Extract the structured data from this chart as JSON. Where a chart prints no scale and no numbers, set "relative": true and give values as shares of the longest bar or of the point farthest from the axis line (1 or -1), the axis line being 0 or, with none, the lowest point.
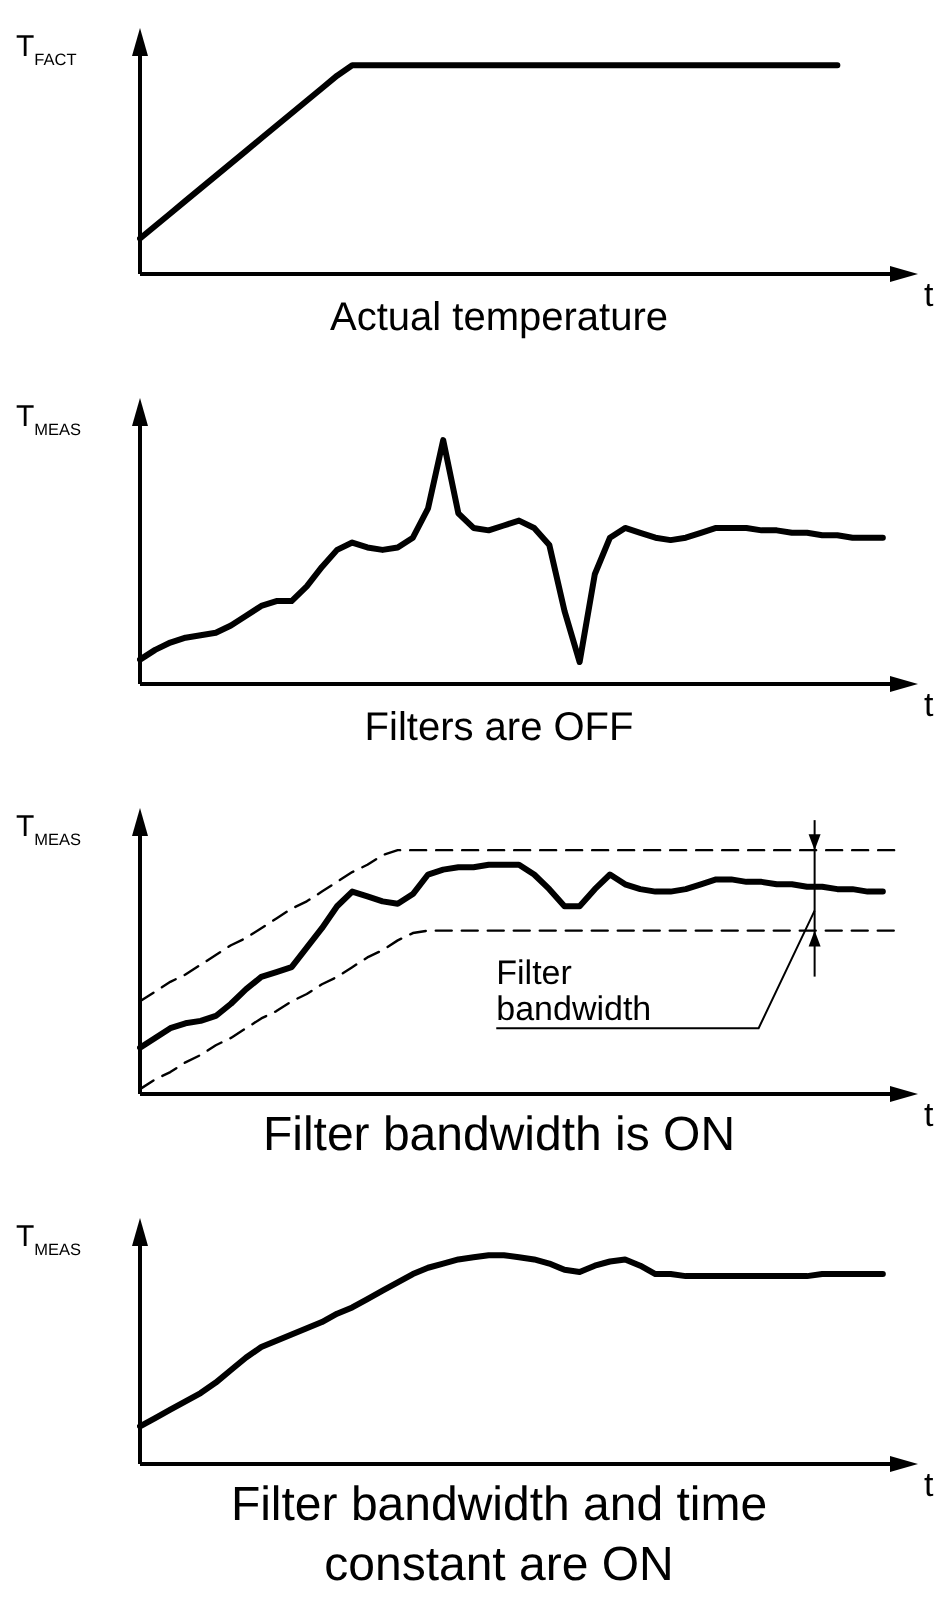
{
  "chart_data": [
    {
      "type": "line",
      "title": "Actual temperature",
      "xlabel": "t",
      "ylabel": "T$_{FACT}$",
      "relative": true,
      "marker": "none",
      "categories": [
        null,
        null,
        null,
        null,
        null,
        null,
        null,
        null,
        null,
        null,
        null,
        null,
        null,
        null,
        null,
        null,
        null,
        null,
        null,
        null,
        null,
        null,
        null,
        null,
        null,
        null,
        null,
        null,
        null,
        null,
        null,
        null,
        null,
        null,
        null,
        null,
        null,
        null,
        null,
        null,
        null,
        null,
        null,
        null,
        null,
        null,
        null,
        null,
        null,
        null,
        null
      ],
      "series": [
        {
          "color": "#000000",
          "values": [
            0.17,
            0.23,
            0.29,
            0.35,
            0.41,
            0.47,
            0.53,
            0.59,
            0.65,
            0.71,
            0.77,
            0.83,
            0.89,
            0.95,
            1,
            1,
            1,
            1,
            1,
            1,
            1,
            1,
            1,
            1,
            1,
            1,
            1,
            1,
            1,
            1,
            1,
            1,
            1,
            1,
            1,
            1,
            1,
            1,
            1,
            1,
            1,
            1,
            1,
            1,
            1,
            1,
            1,
            null,
            null,
            null,
            null
          ]
        }
      ]
    },
    {
      "type": "line",
      "title": "Filters are OFF",
      "xlabel": "t",
      "ylabel": "T$_{MEAS}$",
      "relative": true,
      "marker": "none",
      "categories": [
        null,
        null,
        null,
        null,
        null,
        null,
        null,
        null,
        null,
        null,
        null,
        null,
        null,
        null,
        null,
        null,
        null,
        null,
        null,
        null,
        null,
        null,
        null,
        null,
        null,
        null,
        null,
        null,
        null,
        null,
        null,
        null,
        null,
        null,
        null,
        null,
        null,
        null,
        null,
        null,
        null,
        null,
        null,
        null,
        null,
        null,
        null,
        null,
        null,
        null,
        null
      ],
      "series": [
        {
          "color": "#000000",
          "values": [
            0.1,
            0.14,
            0.17,
            0.19,
            0.2,
            0.21,
            0.24,
            0.28,
            0.32,
            0.34,
            0.34,
            0.4,
            0.48,
            0.55,
            0.58,
            0.56,
            0.55,
            0.56,
            0.6,
            0.72,
            1,
            0.7,
            0.64,
            0.63,
            0.65,
            0.67,
            0.64,
            0.57,
            0.3,
            0.09,
            0.45,
            0.6,
            0.64,
            0.62,
            0.6,
            0.59,
            0.6,
            0.62,
            0.64,
            0.64,
            0.64,
            0.63,
            0.63,
            0.62,
            0.62,
            0.61,
            0.61,
            0.6,
            0.6,
            0.6,
            null
          ]
        }
      ]
    },
    {
      "type": "line",
      "title": "Filter bandwidth is ON",
      "xlabel": "t",
      "ylabel": "T$_{MEAS}$",
      "relative": true,
      "marker": "none",
      "annotations": [
        "Filter bandwidth"
      ],
      "categories": [
        null,
        null,
        null,
        null,
        null,
        null,
        null,
        null,
        null,
        null,
        null,
        null,
        null,
        null,
        null,
        null,
        null,
        null,
        null,
        null,
        null,
        null,
        null,
        null,
        null,
        null,
        null,
        null,
        null,
        null,
        null,
        null,
        null,
        null,
        null,
        null,
        null,
        null,
        null,
        null,
        null,
        null,
        null,
        null,
        null,
        null,
        null,
        null,
        null,
        null,
        null
      ],
      "series": [
        {
          "color": "#000000",
          "values": [
            0.19,
            0.23,
            0.27,
            0.29,
            0.3,
            0.32,
            0.37,
            0.43,
            0.48,
            0.5,
            0.52,
            0.6,
            0.68,
            0.77,
            0.83,
            0.81,
            0.79,
            0.78,
            0.82,
            0.9,
            0.92,
            0.93,
            0.93,
            0.94,
            0.94,
            0.94,
            0.9,
            0.84,
            0.77,
            0.77,
            0.84,
            0.9,
            0.86,
            0.84,
            0.83,
            0.83,
            0.84,
            0.86,
            0.88,
            0.88,
            0.87,
            0.87,
            0.86,
            0.86,
            0.85,
            0.85,
            0.84,
            0.84,
            0.83,
            0.83,
            null
          ]
        },
        {
          "color": "#000000",
          "line_style": "dashed",
          "values": [
            0.38,
            0.42,
            0.46,
            0.49,
            0.53,
            0.57,
            0.61,
            0.64,
            0.68,
            0.72,
            0.76,
            0.79,
            0.83,
            0.87,
            0.91,
            0.94,
            0.98,
            1,
            1,
            1,
            1,
            1,
            1,
            1,
            1,
            1,
            1,
            1,
            1,
            1,
            1,
            1,
            1,
            1,
            1,
            1,
            1,
            1,
            1,
            1,
            1,
            1,
            1,
            1,
            1,
            1,
            1,
            1,
            1,
            1,
            1
          ]
        },
        {
          "color": "#000000",
          "line_style": "dashed",
          "values": [
            0.02,
            0.06,
            0.09,
            0.13,
            0.16,
            0.2,
            0.23,
            0.27,
            0.31,
            0.34,
            0.38,
            0.41,
            0.45,
            0.48,
            0.52,
            0.56,
            0.59,
            0.63,
            0.66,
            0.67,
            0.67,
            0.67,
            0.67,
            0.67,
            0.67,
            0.67,
            0.67,
            0.67,
            0.67,
            0.67,
            0.67,
            0.67,
            0.67,
            0.67,
            0.67,
            0.67,
            0.67,
            0.67,
            0.67,
            0.67,
            0.67,
            0.67,
            0.67,
            0.67,
            0.67,
            0.67,
            0.67,
            0.67,
            0.67,
            0.67,
            0.67
          ]
        }
      ]
    },
    {
      "type": "line",
      "title": "Filter bandwidth and time constant are ON",
      "xlabel": "t",
      "ylabel": "T$_{MEAS}$",
      "relative": true,
      "marker": "none",
      "categories": [
        null,
        null,
        null,
        null,
        null,
        null,
        null,
        null,
        null,
        null,
        null,
        null,
        null,
        null,
        null,
        null,
        null,
        null,
        null,
        null,
        null,
        null,
        null,
        null,
        null,
        null,
        null,
        null,
        null,
        null,
        null,
        null,
        null,
        null,
        null,
        null,
        null,
        null,
        null,
        null,
        null,
        null,
        null,
        null,
        null,
        null,
        null,
        null,
        null,
        null,
        null
      ],
      "series": [
        {
          "color": "#000000",
          "values": [
            0.18,
            0.22,
            0.26,
            0.3,
            0.34,
            0.39,
            0.45,
            0.51,
            0.56,
            0.59,
            0.62,
            0.65,
            0.68,
            0.72,
            0.75,
            0.79,
            0.83,
            0.87,
            0.91,
            0.94,
            0.96,
            0.98,
            0.99,
            1,
            1,
            0.99,
            0.98,
            0.96,
            0.93,
            0.92,
            0.95,
            0.97,
            0.98,
            0.95,
            0.91,
            0.91,
            0.9,
            0.9,
            0.9,
            0.9,
            0.9,
            0.9,
            0.9,
            0.9,
            0.9,
            0.91,
            0.91,
            0.91,
            0.91,
            0.91,
            null
          ]
        }
      ]
    }
  ]
}
